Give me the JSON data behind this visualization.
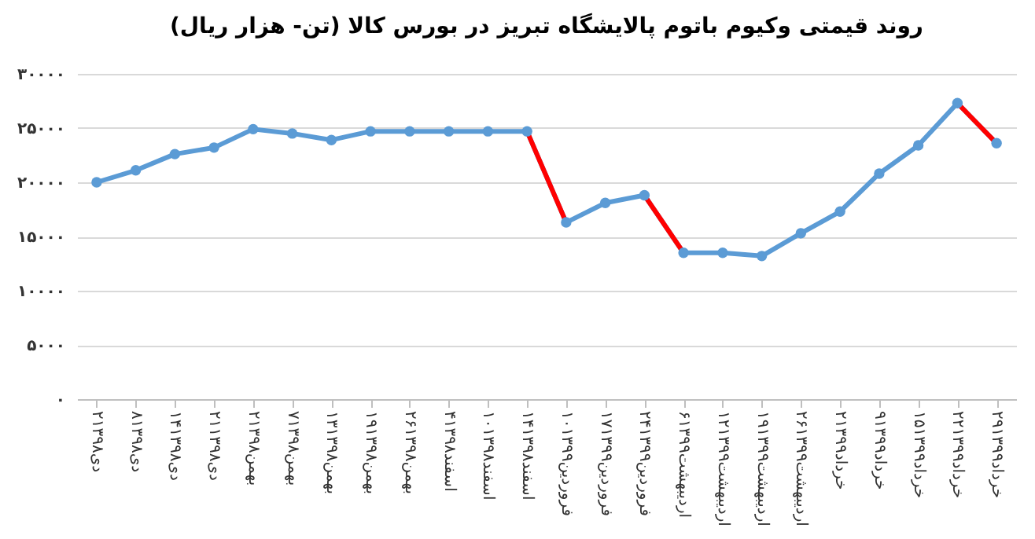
{
  "chart_data": {
    "type": "line",
    "title": "روند قیمتی وکیوم باتوم پالایشگاه تبریز در بورس کالا (تن- هزار ریال)",
    "categories": [
      "۲دی۱۳۹۸",
      "۸دی۱۳۹۸",
      "۱۴دی۱۳۹۸",
      "۲۱دی۱۳۹۸",
      "۲بهمن۱۳۹۸",
      "۷بهمن۱۳۹۸",
      "۱۳بهمن۱۳۹۸",
      "۱۹بهمن۱۳۹۸",
      "۲۶بهمن۱۳۹۸",
      "۴اسفند۱۳۹۸",
      "۱۰اسفند۱۳۹۸",
      "۱۴اسفند۱۳۹۸",
      "۱۰فروردین۱۳۹۹",
      "۱۷فروردین۱۳۹۹",
      "۲۴فروردین۱۳۹۹",
      "۶اردیبهشت۱۳۹۹",
      "۱۲اردیبهشت۱۳۹۹",
      "۱۹اردیبهشت۱۳۹۹",
      "۲۶اردیبهشت۱۳۹۹",
      "۲خرداد۱۳۹۹",
      "۹خرداد۱۳۹۹",
      "۱۵خرداد۱۳۹۹",
      "۲۲خرداد۱۳۹۹",
      "۲۹خرداد۱۳۹۹"
    ],
    "series": [
      {
        "color": "#5b9bd5",
        "marker": "circle",
        "values": [
          20000,
          21100,
          22600,
          23200,
          24900,
          24500,
          23900,
          24700,
          24700,
          24700,
          24700,
          24700,
          16300,
          18100,
          18800,
          13500,
          13500,
          13200,
          15300,
          17300,
          20800,
          23400,
          27300,
          23600
        ]
      },
      {
        "color": "#ff0000",
        "marker": "none",
        "values": [
          null,
          null,
          null,
          null,
          null,
          null,
          null,
          null,
          null,
          null,
          null,
          24700,
          16300,
          null,
          18800,
          13500,
          null,
          null,
          null,
          null,
          null,
          null,
          27300,
          23600
        ]
      }
    ],
    "ylim": [
      0,
      30000
    ],
    "yticks": [
      {
        "value": 0,
        "label": "۰"
      },
      {
        "value": 5000,
        "label": "۵۰۰۰"
      },
      {
        "value": 10000,
        "label": "۱۰۰۰۰"
      },
      {
        "value": 15000,
        "label": "۱۵۰۰۰"
      },
      {
        "value": 20000,
        "label": "۲۰۰۰۰"
      },
      {
        "value": 25000,
        "label": "۲۵۰۰۰"
      },
      {
        "value": 30000,
        "label": "۳۰۰۰۰"
      }
    ],
    "grid": "y",
    "legend": false
  }
}
